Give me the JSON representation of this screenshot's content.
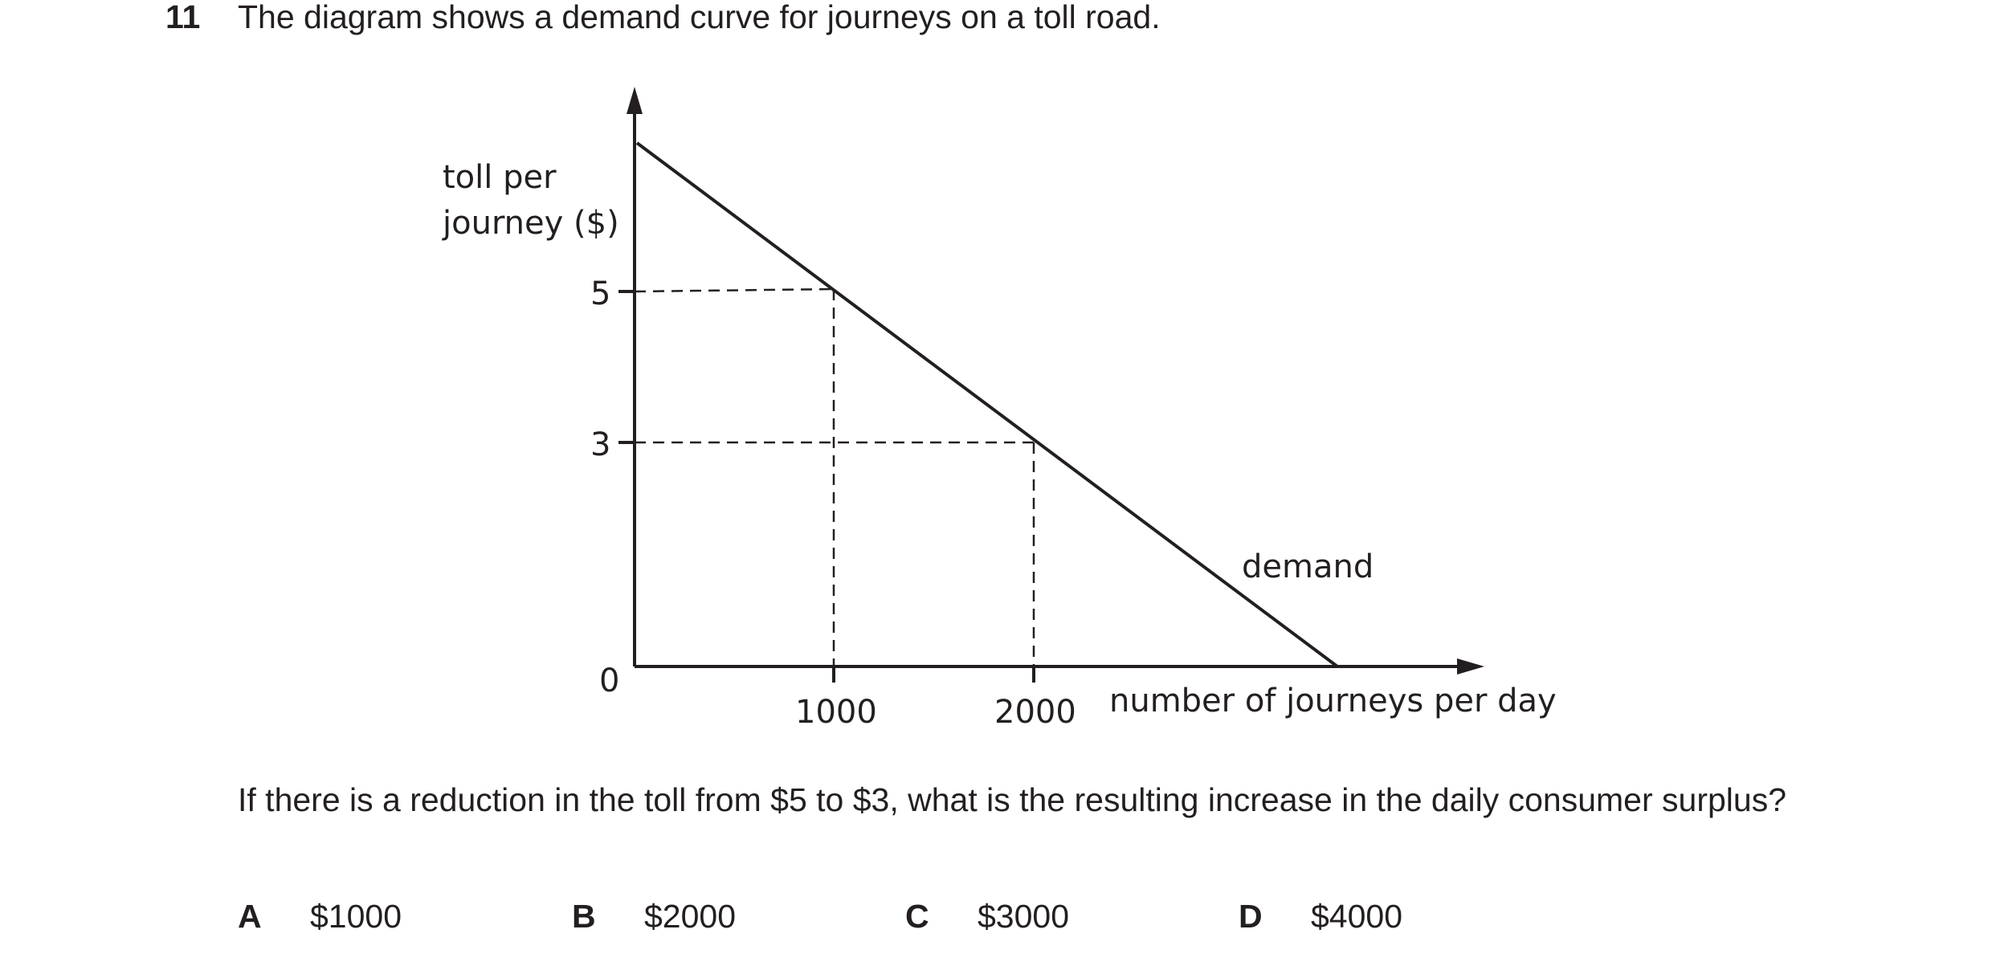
{
  "question": {
    "number": "11",
    "stem": "The diagram shows a demand curve for journeys on a toll road.",
    "followup": "If there is a reduction in the toll from $5 to $3, what is the resulting increase in the daily consumer surplus?",
    "options": [
      {
        "letter": "A",
        "text": "$1000"
      },
      {
        "letter": "B",
        "text": "$2000"
      },
      {
        "letter": "C",
        "text": "$3000"
      },
      {
        "letter": "D",
        "text": "$4000"
      }
    ]
  },
  "diagram": {
    "y_label_line1": "toll per",
    "y_label_line2": "journey ($)",
    "x_label": "number of journeys per day",
    "curve_label": "demand",
    "origin_label": "0",
    "y_ticks": [
      "5",
      "3"
    ],
    "x_ticks": [
      "1000",
      "2000"
    ],
    "line_color": "#231f20"
  }
}
